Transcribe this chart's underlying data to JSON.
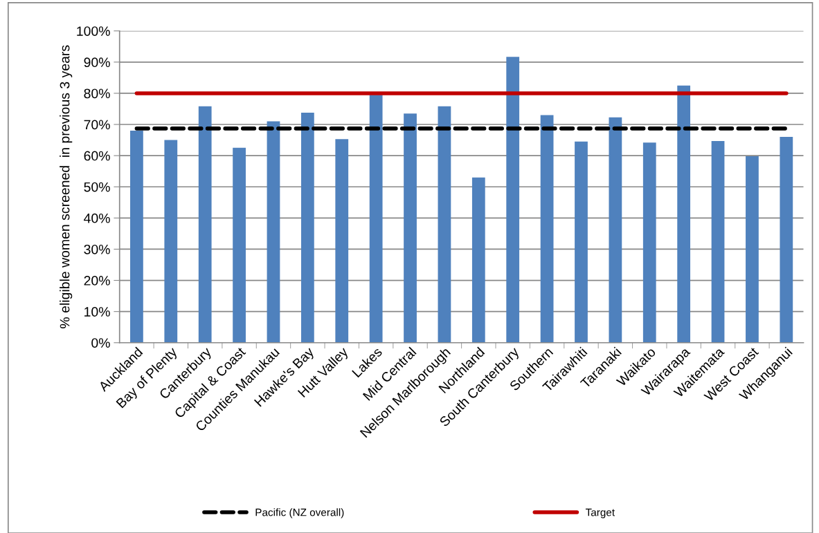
{
  "chart_data": {
    "type": "bar",
    "ylabel": "% eligible women screened  in previous 3 years",
    "categories": [
      "Auckland",
      "Bay of Plenty",
      "Canterbury",
      "Capital & Coast",
      "Counties Manukau",
      "Hawke's Bay",
      "Hutt Valley",
      "Lakes",
      "Mid Central",
      "Nelson Marlborough",
      "Northland",
      "South Canterbury",
      "Southern",
      "Tairawhiti",
      "Taranaki",
      "Waikato",
      "Wairarapa",
      "Waitemata",
      "West Coast",
      "Whanganui"
    ],
    "series": [
      {
        "color": "#4f81bd",
        "values": [
          68,
          65,
          75.8,
          62.5,
          71,
          73.8,
          65.3,
          79.5,
          73.5,
          75.8,
          53,
          91.7,
          73,
          64.5,
          72.3,
          64.2,
          82.5,
          64.7,
          59.8,
          66
        ]
      },
      {
        "type": "line",
        "name": "Pacific (NZ overall)",
        "color": "#000000",
        "line_style": "dashed",
        "values": [
          68.7,
          68.7,
          68.7,
          68.7,
          68.7,
          68.7,
          68.7,
          68.7,
          68.7,
          68.7,
          68.7,
          68.7,
          68.7,
          68.7,
          68.7,
          68.7,
          68.7,
          68.7,
          68.7,
          68.7
        ]
      },
      {
        "type": "line",
        "name": "Target",
        "color": "#c00000",
        "line_style": "solid",
        "values": [
          80,
          80,
          80,
          80,
          80,
          80,
          80,
          80,
          80,
          80,
          80,
          80,
          80,
          80,
          80,
          80,
          80,
          80,
          80,
          80
        ]
      }
    ],
    "ylim": [
      0,
      100
    ],
    "yticks": [
      {
        "value": 0,
        "label": "0%"
      },
      {
        "value": 10,
        "label": "10%"
      },
      {
        "value": 20,
        "label": "20%"
      },
      {
        "value": 30,
        "label": "30%"
      },
      {
        "value": 40,
        "label": "40%"
      },
      {
        "value": 50,
        "label": "50%"
      },
      {
        "value": 60,
        "label": "60%"
      },
      {
        "value": 70,
        "label": "70%"
      },
      {
        "value": 80,
        "label": "80%"
      },
      {
        "value": 90,
        "label": "90%"
      },
      {
        "value": 100,
        "label": "100%"
      }
    ],
    "grid": "y",
    "legend": "bottom"
  }
}
